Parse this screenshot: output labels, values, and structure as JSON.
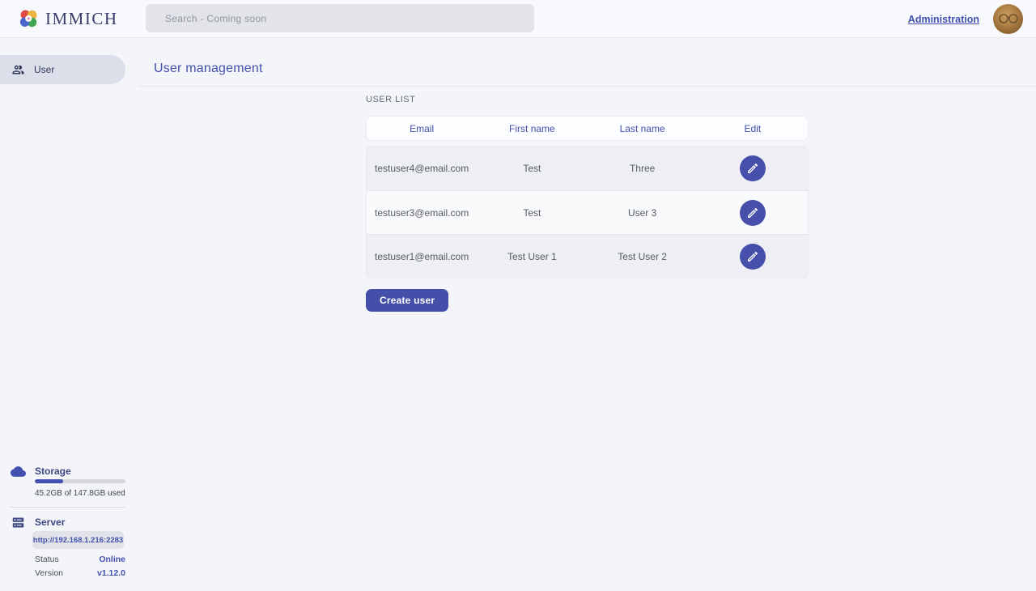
{
  "header": {
    "logo_text": "IMMICH",
    "search_placeholder": "Search - Coming soon",
    "admin_link": "Administration"
  },
  "sidebar": {
    "items": [
      {
        "label": "User"
      }
    ],
    "storage": {
      "title": "Storage",
      "usage_text": "45.2GB of 147.8GB used",
      "percent_used": 31
    },
    "server": {
      "title": "Server",
      "url": "http://192.168.1.216:2283",
      "status_label": "Status",
      "status_value": "Online",
      "version_label": "Version",
      "version_value": "v1.12.0"
    }
  },
  "main": {
    "page_title": "User management",
    "section_title": "USER LIST",
    "table": {
      "columns": [
        "Email",
        "First name",
        "Last name",
        "Edit"
      ],
      "rows": [
        {
          "email": "testuser4@email.com",
          "first_name": "Test",
          "last_name": "Three"
        },
        {
          "email": "testuser3@email.com",
          "first_name": "Test",
          "last_name": "User 3"
        },
        {
          "email": "testuser1@email.com",
          "first_name": "Test User 1",
          "last_name": "Test User 2"
        }
      ]
    },
    "create_button": "Create user"
  },
  "colors": {
    "primary": "#4250af",
    "online_status": "#4250af"
  }
}
